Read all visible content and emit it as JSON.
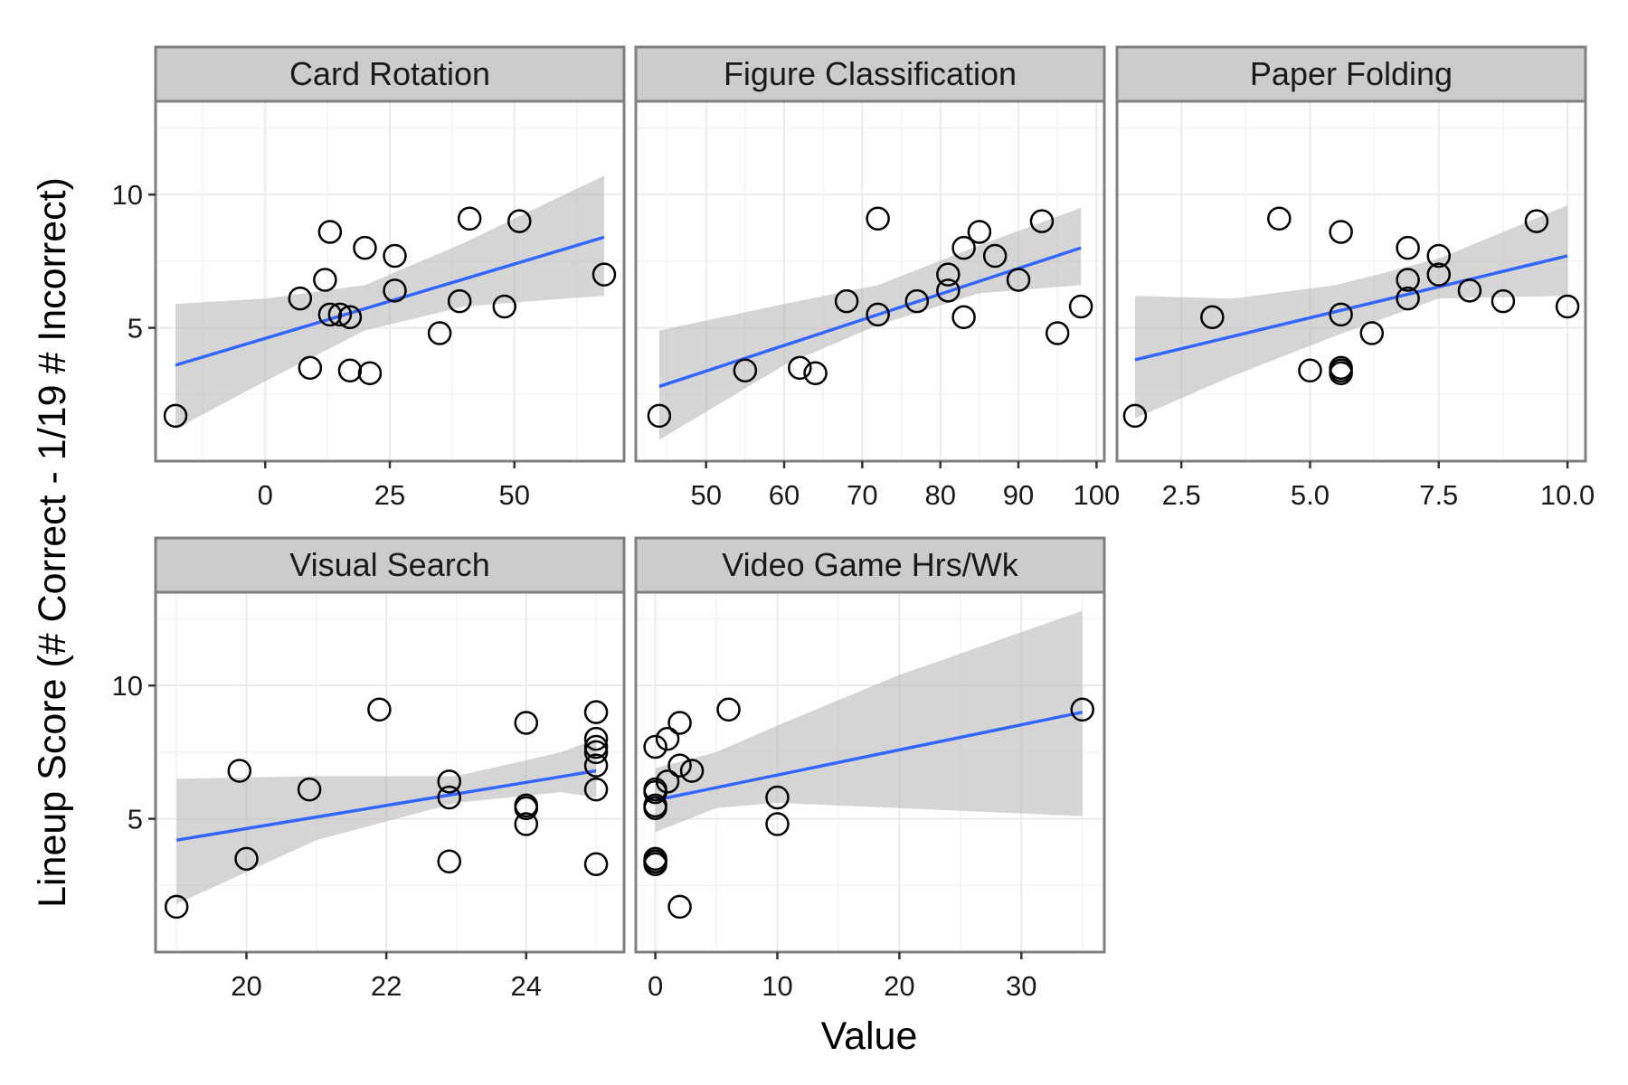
{
  "chart_data": {
    "type": "scatter",
    "layout": "facet_wrap",
    "ylabel": "Lineup Score (# Correct - 1/19 # Incorrect)",
    "xlabel": "Value",
    "ylim": [
      0,
      13.5
    ],
    "yticks": [
      5,
      10
    ],
    "grid": true,
    "fit": "linear regression with confidence band",
    "colors": {
      "fit_line": "#3366ff",
      "band": "#b3b3b3",
      "point_stroke": "#000000",
      "strip": "#cccccc",
      "strip_border": "#7f7f7f",
      "grid": "#ebebeb",
      "panel_border": "#7f7f7f"
    },
    "panels": [
      {
        "title": "Card Rotation",
        "xlim": [
          -22,
          72
        ],
        "xticks": [
          "0",
          "25",
          "50"
        ],
        "xtick_values": [
          0,
          25,
          50
        ],
        "x": [
          -18,
          7,
          9,
          12,
          13,
          13,
          15,
          17,
          17,
          20,
          21,
          26,
          26,
          35,
          39,
          41,
          48,
          51,
          68
        ],
        "y": [
          1.7,
          6.1,
          3.5,
          6.8,
          8.6,
          5.5,
          5.5,
          5.4,
          3.4,
          8.0,
          3.3,
          7.7,
          6.4,
          4.8,
          6.0,
          9.1,
          5.8,
          9.0,
          7.0
        ],
        "fit": {
          "x": [
            -18,
            68
          ],
          "y": [
            3.6,
            8.4
          ]
        },
        "band": {
          "x": [
            -18,
            0,
            20,
            40,
            60,
            68
          ],
          "lower": [
            1.2,
            3.0,
            4.9,
            5.8,
            6.1,
            6.2
          ],
          "upper": [
            5.9,
            6.1,
            6.6,
            8.2,
            10.0,
            10.7
          ]
        }
      },
      {
        "title": "Figure Classification",
        "xlim": [
          41,
          101
        ],
        "xticks": [
          "50",
          "60",
          "70",
          "80",
          "90",
          "100"
        ],
        "xtick_values": [
          50,
          60,
          70,
          80,
          90,
          100
        ],
        "x": [
          44,
          55,
          62,
          64,
          68,
          72,
          72,
          77,
          81,
          81,
          83,
          83,
          85,
          87,
          90,
          93,
          95,
          98
        ],
        "y": [
          1.7,
          3.4,
          3.5,
          3.3,
          6.0,
          9.1,
          5.5,
          6.0,
          7.0,
          6.4,
          8.0,
          5.4,
          8.6,
          7.7,
          6.8,
          9.0,
          4.8,
          5.8
        ],
        "fit": {
          "x": [
            44,
            98
          ],
          "y": [
            2.8,
            8.0
          ]
        },
        "band": {
          "x": [
            44,
            60,
            72,
            85,
            98
          ],
          "lower": [
            0.8,
            3.6,
            5.1,
            6.3,
            6.6
          ],
          "upper": [
            4.9,
            5.9,
            6.6,
            8.1,
            9.5
          ]
        }
      },
      {
        "title": "Paper Folding",
        "xlim": [
          1.25,
          10.35
        ],
        "xticks": [
          "2.5",
          "5.0",
          "7.5",
          "10.0"
        ],
        "xtick_values": [
          2.5,
          5.0,
          7.5,
          10.0
        ],
        "x": [
          1.6,
          3.1,
          4.4,
          5.0,
          5.6,
          5.6,
          5.6,
          5.6,
          5.6,
          6.2,
          6.9,
          6.9,
          6.9,
          7.5,
          7.5,
          8.1,
          8.75,
          9.4,
          10.0
        ],
        "y": [
          1.7,
          5.4,
          9.1,
          3.4,
          8.6,
          5.5,
          3.5,
          3.4,
          3.3,
          4.8,
          8.0,
          6.8,
          6.1,
          7.7,
          7.0,
          6.4,
          6.0,
          9.0,
          5.8
        ],
        "fit": {
          "x": [
            1.6,
            10.0
          ],
          "y": [
            3.8,
            7.7
          ]
        },
        "band": {
          "x": [
            1.6,
            3.5,
            5.5,
            7.5,
            10.0
          ],
          "lower": [
            1.6,
            3.2,
            4.7,
            6.1,
            6.2
          ],
          "upper": [
            6.2,
            6.1,
            6.6,
            7.6,
            9.6
          ]
        }
      },
      {
        "title": "Visual Search",
        "xlim": [
          18.7,
          25.4
        ],
        "xticks": [
          "20",
          "22",
          "24"
        ],
        "xtick_values": [
          20,
          22,
          24
        ],
        "x": [
          19,
          19.9,
          20,
          20.9,
          21.9,
          22.9,
          22.9,
          22.9,
          24,
          24,
          24,
          24,
          25,
          25,
          25,
          25,
          25,
          25,
          25
        ],
        "y": [
          1.7,
          6.8,
          3.5,
          6.1,
          9.1,
          6.4,
          5.8,
          3.4,
          8.6,
          5.5,
          5.4,
          4.8,
          9.0,
          8.0,
          7.7,
          7.0,
          6.1,
          3.3,
          7.5
        ],
        "fit": {
          "x": [
            19,
            25
          ],
          "y": [
            4.2,
            6.8
          ]
        },
        "band": {
          "x": [
            19,
            21,
            23,
            24.5,
            25
          ],
          "lower": [
            1.8,
            4.2,
            5.6,
            6.0,
            5.8
          ],
          "upper": [
            6.5,
            6.6,
            6.6,
            7.5,
            8.0
          ]
        }
      },
      {
        "title": "Video Game Hrs/Wk",
        "xlim": [
          -1.6,
          36.8
        ],
        "xticks": [
          "0",
          "10",
          "20",
          "30"
        ],
        "xtick_values": [
          0,
          10,
          20,
          30
        ],
        "x": [
          0,
          0,
          0,
          0,
          0,
          0,
          0,
          0,
          0,
          1,
          1,
          2,
          2,
          2,
          3,
          6,
          10,
          10,
          35
        ],
        "y": [
          7.7,
          6.1,
          5.5,
          5.4,
          3.5,
          3.4,
          3.3,
          6.0,
          3.4,
          8.0,
          6.4,
          8.6,
          7.0,
          1.7,
          6.8,
          9.1,
          5.8,
          4.8,
          9.1
        ],
        "fit": {
          "x": [
            0,
            35
          ],
          "y": [
            5.7,
            9.0
          ]
        },
        "band": {
          "x": [
            0,
            5,
            10,
            20,
            35
          ],
          "lower": [
            4.5,
            5.4,
            5.6,
            5.4,
            5.1
          ],
          "upper": [
            6.9,
            7.5,
            8.5,
            10.4,
            12.8
          ]
        }
      }
    ]
  }
}
